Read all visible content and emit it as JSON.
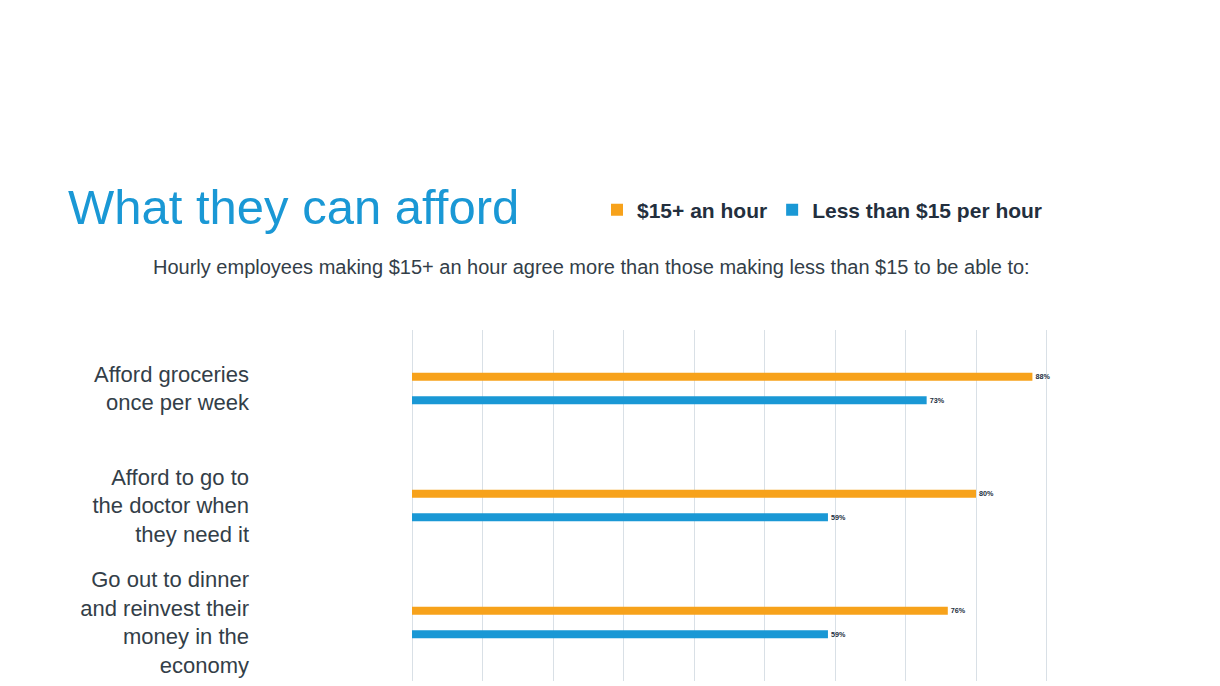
{
  "chart_data": {
    "type": "bar",
    "title": "What they can afford",
    "subtitle": "Hourly employees making $15+ an hour agree more than those making less than $15 to be able to:",
    "orientation": "horizontal",
    "categories": [
      "Afford groceries once per week",
      "Afford to go to the doctor when they need it",
      "Go out to dinner and reinvest their money in the economy"
    ],
    "series": [
      {
        "name": "$15+ an hour",
        "color": "#f7a21b",
        "values": [
          88,
          80,
          76
        ],
        "value_labels": [
          "88%",
          "80%",
          "76%"
        ]
      },
      {
        "name": "Less than $15 per hour",
        "color": "#1a98d5",
        "values": [
          73,
          59,
          59
        ],
        "value_labels": [
          "73%",
          "59%",
          "59%"
        ]
      }
    ],
    "xlim": [
      0,
      100
    ],
    "xticks": [
      0,
      10,
      20,
      30,
      40,
      50,
      60,
      70,
      80,
      90,
      100
    ],
    "grid": true,
    "legend": "top",
    "data_labels": true,
    "tick_labels": "y"
  }
}
